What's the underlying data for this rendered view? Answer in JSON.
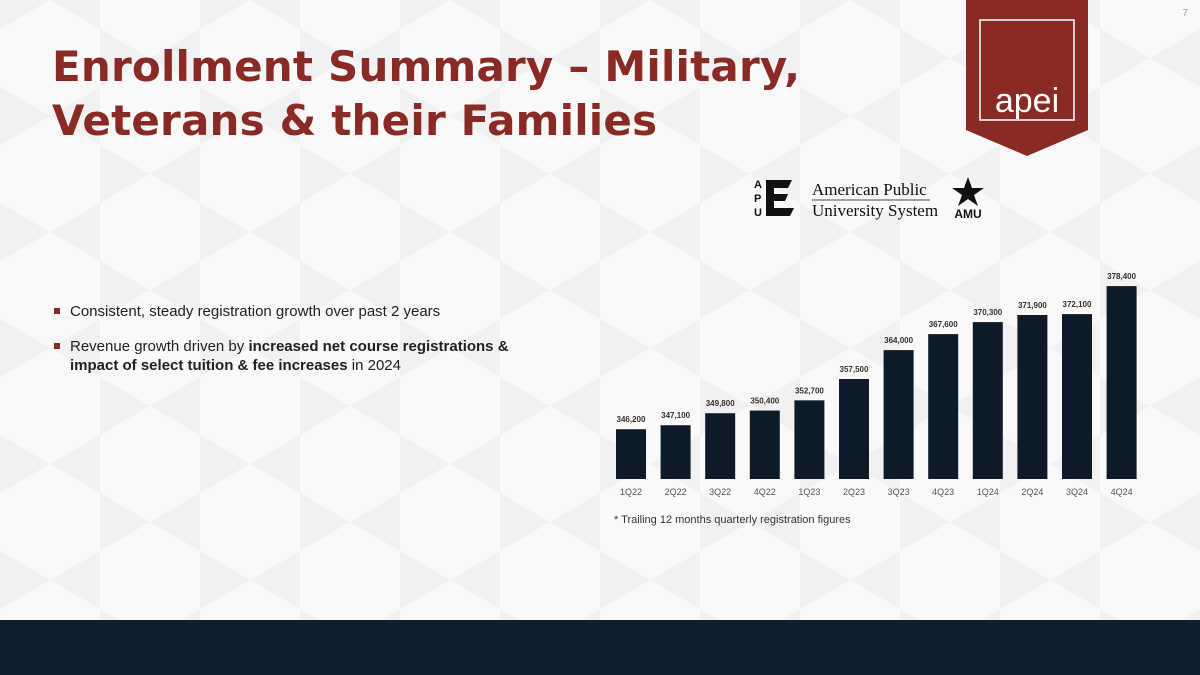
{
  "page_number": "7",
  "title": {
    "line1": "Enrollment Summary – Military,",
    "line2": "Veterans & their Families"
  },
  "logo": {
    "brand_text": "apei"
  },
  "apus_logo": {
    "letters": [
      "A",
      "P",
      "U"
    ],
    "line1": "American Public",
    "line2": "University System",
    "amu_text": "AMU"
  },
  "bullets": [
    {
      "pre": "Consistent, steady registration growth over past 2 years",
      "bold": "",
      "post": ""
    },
    {
      "pre": "Revenue growth driven by ",
      "bold": "increased net course registrations & impact of select tuition & fee increases",
      "post": " in 2024"
    }
  ],
  "chart_data": {
    "type": "bar",
    "title": "",
    "xlabel": "",
    "ylabel": "",
    "categories": [
      "1Q22",
      "2Q22",
      "3Q22",
      "4Q22",
      "1Q23",
      "2Q23",
      "3Q23",
      "4Q23",
      "1Q24",
      "2Q24",
      "3Q24",
      "4Q24"
    ],
    "values": [
      346200,
      347100,
      349800,
      350400,
      352700,
      357500,
      364000,
      367600,
      370300,
      371900,
      372100,
      378400
    ],
    "data_labels": [
      "346,200",
      "347,100",
      "349,800",
      "350,400",
      "352,700",
      "357,500",
      "364,000",
      "367,600",
      "370,300",
      "371,900",
      "372,100",
      "378,400"
    ],
    "ylim": [
      335000,
      380000
    ],
    "bar_color": "#0d1b29",
    "grid": false
  },
  "footnote": "* Trailing 12 months quarterly registration figures",
  "colors": {
    "accent": "#8a2a24",
    "navy": "#0f1f2e"
  }
}
